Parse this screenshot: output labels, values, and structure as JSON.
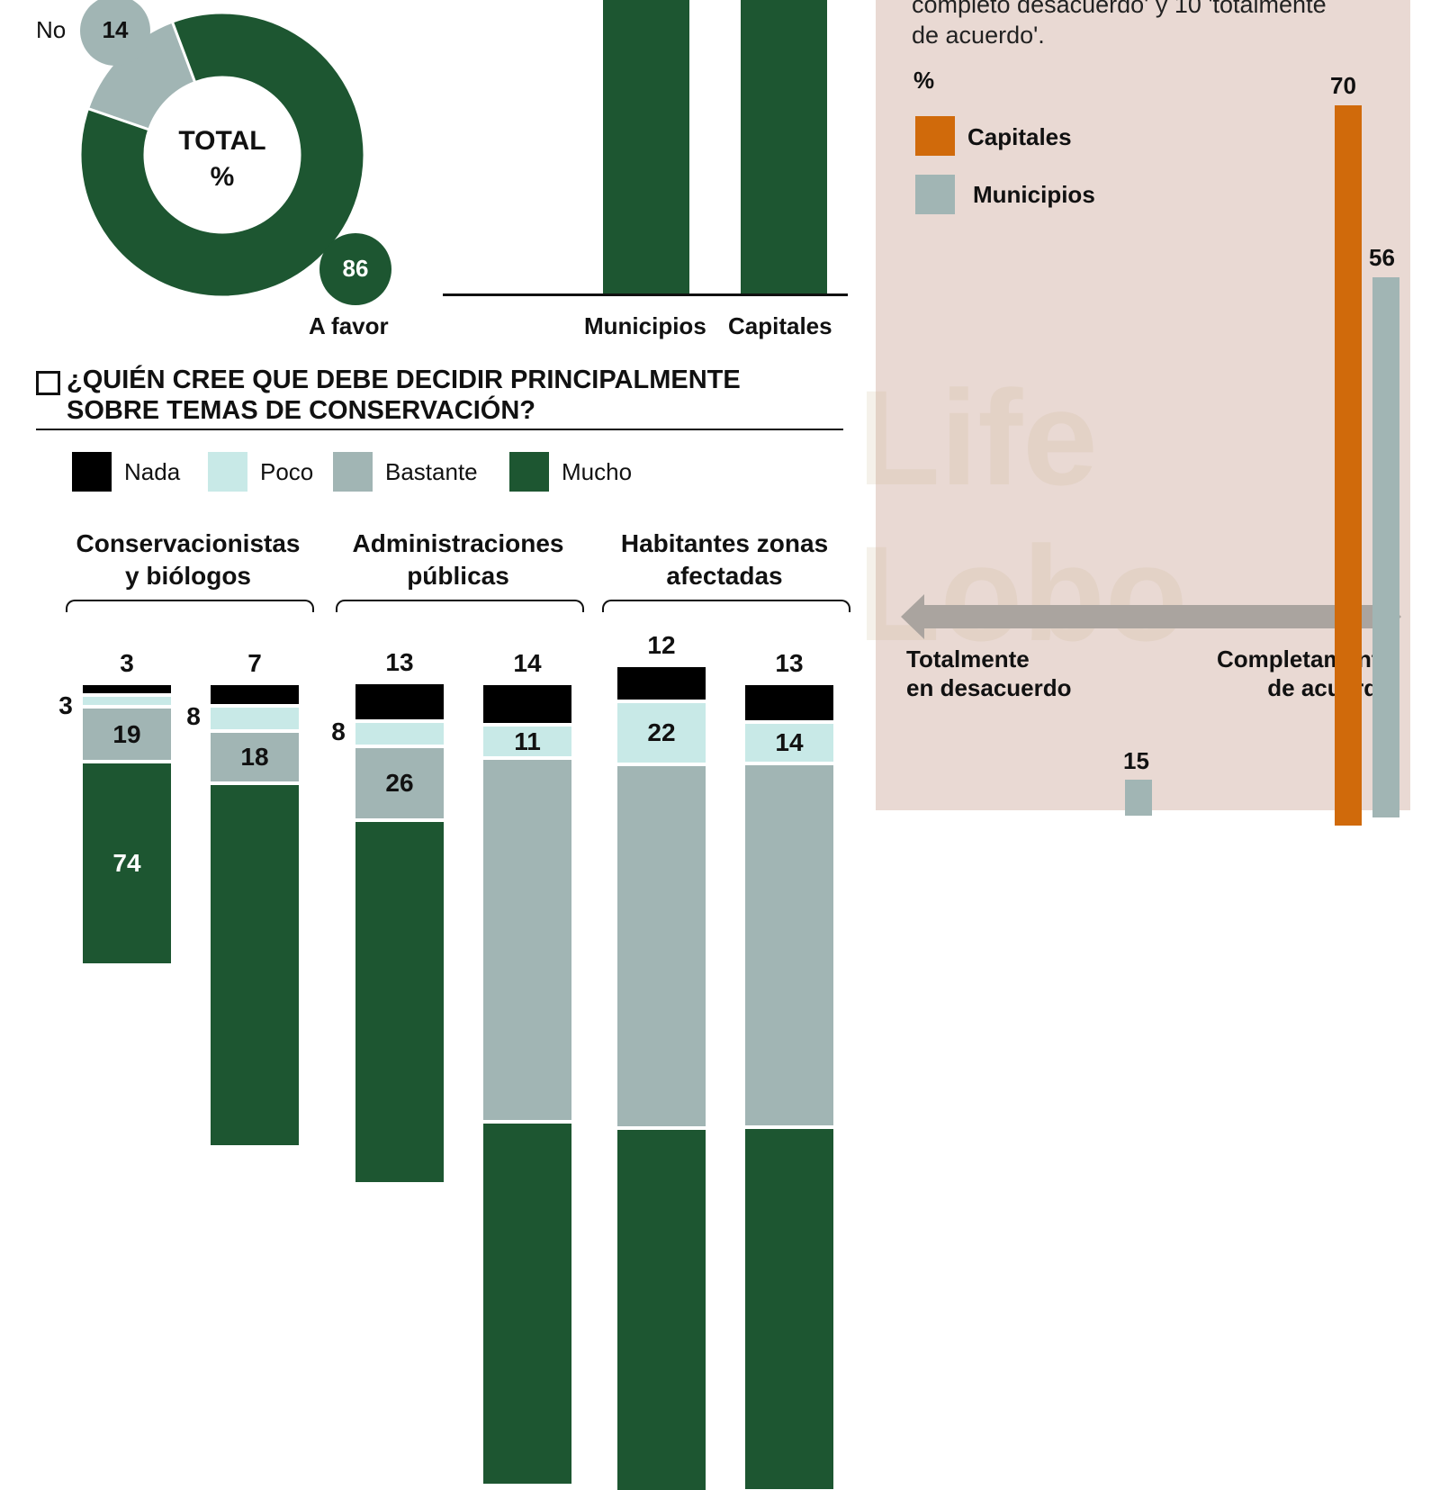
{
  "donut": {
    "center_title": "TOTAL",
    "center_unit": "%",
    "no_label": "No",
    "no_value": "14",
    "favor_label": "A favor",
    "favor_value": "86",
    "colors": {
      "favor": "#1d5631",
      "no": "#a1b5b4"
    }
  },
  "top_bars": {
    "categories": [
      "Municipios",
      "Capitales"
    ],
    "color": "#1d5631"
  },
  "section": {
    "title_line1": "¿QUIÉN CREE QUE DEBE DECIDIR PRINCIPALMENTE",
    "title_line2": "SOBRE TEMAS DE CONSERVACIÓN?"
  },
  "legend": [
    {
      "label": "Nada",
      "color": "#000000"
    },
    {
      "label": "Poco",
      "color": "#c8e9e7"
    },
    {
      "label": "Bastante",
      "color": "#a1b5b4"
    },
    {
      "label": "Mucho",
      "color": "#1d5631"
    }
  ],
  "groups": [
    {
      "line1": "Conservacionistas",
      "line2": "y biólogos"
    },
    {
      "line1": "Administraciones",
      "line2": "públicas"
    },
    {
      "line1": "Habitantes zonas",
      "line2": "afectadas"
    }
  ],
  "chart_data": {
    "type": "bar",
    "stacked": true,
    "series_order": [
      "Nada",
      "Poco",
      "Bastante",
      "Mucho"
    ],
    "bars": [
      {
        "group": "Conservacionistas y biólogos",
        "values": [
          3,
          3,
          19,
          74
        ]
      },
      {
        "group": "Conservacionistas y biólogos",
        "values": [
          7,
          8,
          18,
          null
        ]
      },
      {
        "group": "Administraciones públicas",
        "values": [
          13,
          8,
          26,
          null
        ]
      },
      {
        "group": "Administraciones públicas",
        "values": [
          14,
          11,
          null,
          null
        ]
      },
      {
        "group": "Habitantes zonas afectadas",
        "values": [
          12,
          22,
          null,
          null
        ]
      },
      {
        "group": "Habitantes zonas afectadas",
        "values": [
          13,
          14,
          null,
          null
        ]
      }
    ]
  },
  "right": {
    "text_line1": "completo desacuerdo' y 10 'totalmente",
    "text_line2": "de acuerdo'.",
    "unit": "%",
    "legend": [
      {
        "label": "Capitales",
        "color": "#d06a0b"
      },
      {
        "label": "Municipios",
        "color": "#a1b5b4"
      }
    ],
    "axis_left": [
      "Totalmente",
      "en desacuerdo"
    ],
    "axis_right": [
      "Completamente",
      "de acuerdo"
    ],
    "values": {
      "capitales_max": "70",
      "municipios_max": "56",
      "municipios_low": "15"
    },
    "watermark": "Life Lobo"
  }
}
